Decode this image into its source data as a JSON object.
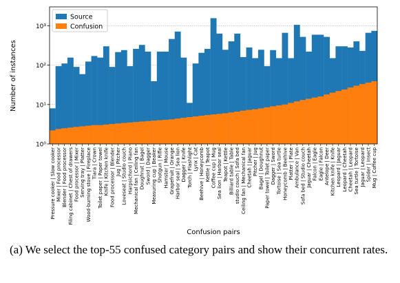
{
  "chart_data": {
    "type": "bar",
    "y_label": "Number of instances",
    "x_label": "Confusion pairs",
    "log_scale": true,
    "grid": true,
    "legend": "upper left",
    "ylim": [
      1,
      3000
    ],
    "yticks": [
      {
        "value": 1,
        "label": "10⁰"
      },
      {
        "value": 10,
        "label": "10¹"
      },
      {
        "value": 100,
        "label": "10²"
      },
      {
        "value": 1000,
        "label": "10³"
      }
    ],
    "categories": [
      "Pressure cooker | Slow cooker",
      "Mixer | Food processor",
      "Blender | Food processor",
      "Filing cabinet | Chest of drawers",
      "Food processor | Mixer",
      "Serving tray | Platter",
      "Wood-burning stove | Fireplace",
      "Tiara | Crown",
      "Toilet paper | Paper towel",
      "Knife | Kitchen knife",
      "Food processor | Blender",
      "Jug | Pitcher",
      "Loveseat | Studio couch",
      "Harpsichord | Piano",
      "Mechanical fan | Ceiling fan",
      "Doughnut | Bagel",
      "Sword | Dagger",
      "Measuring cup | Beaker",
      "Shotgun | Rifle",
      "Hamster | Mouse",
      "Grapefruit | Orange",
      "Harbor seal | Sea lion",
      "Dagger | Knife",
      "Torch | Flashlight",
      "Lynx | Cat",
      "Beehive | Honeycomb",
      "Kettle | Teapot",
      "Coffee cup | Mug",
      "Sea lion | Harbor seal",
      "Teapot | Kettle",
      "Billiard table | Table",
      "studio couch | Sofa bed",
      "Ceiling fan | Mechanical fan",
      "Cheetah | Jaguar",
      "Pitcher | Jug",
      "Bagel | Doughnut",
      "Paper towel | Toilet paper",
      "Dagger | Sword",
      "Tortoise | Sea turtle",
      "Honeycomb | Beehive",
      "Platter | Plate",
      "Ambulance | Van",
      "Sofa bed | Studio couch",
      "Jaguar | Cheetah",
      "Falcon | Eagle",
      "Eagle | Falcon",
      "Antelope | Deer",
      "Kitchen knife | Knife",
      "Leopard | Jaguar",
      "Leopard | Cheetah",
      "Cheetah | Leopard",
      "Sea turtle | Tortoise",
      "Jaguar | Leopard",
      "Spider | Insect",
      "Mug | Coffee cup"
    ],
    "series": [
      {
        "name": "Source",
        "color": "#1f77b4",
        "values": [
          8,
          94,
          110,
          155,
          90,
          59,
          123,
          170,
          155,
          300,
          90,
          214,
          240,
          94,
          258,
          325,
          220,
          39,
          220,
          220,
          460,
          710,
          155,
          11,
          110,
          205,
          258,
          1550,
          630,
          245,
          400,
          630,
          160,
          280,
          150,
          245,
          94,
          240,
          150,
          660,
          150,
          1050,
          520,
          220,
          590,
          590,
          520,
          150,
          300,
          300,
          280,
          400,
          230,
          660,
          740
        ]
      },
      {
        "name": "Confusion",
        "color": "#ff7f0e",
        "values": [
          2.2,
          2.4,
          2.5,
          2.6,
          2.7,
          2.8,
          2.9,
          3,
          3,
          3.1,
          3.2,
          3.3,
          3.4,
          3.5,
          3.6,
          3.7,
          3.8,
          3.9,
          4,
          4.1,
          4.2,
          4.4,
          4.6,
          4.8,
          5,
          5.2,
          5.4,
          5.6,
          5.8,
          6,
          6.3,
          6.6,
          7,
          7.3,
          7.6,
          8,
          8.5,
          9,
          9.5,
          10,
          11,
          12,
          13,
          14,
          15,
          16,
          18,
          20,
          22,
          24,
          27,
          30,
          33,
          36,
          39
        ]
      }
    ]
  },
  "caption": "(a) We select the top-55 confused category pairs and show their concurrent rates."
}
